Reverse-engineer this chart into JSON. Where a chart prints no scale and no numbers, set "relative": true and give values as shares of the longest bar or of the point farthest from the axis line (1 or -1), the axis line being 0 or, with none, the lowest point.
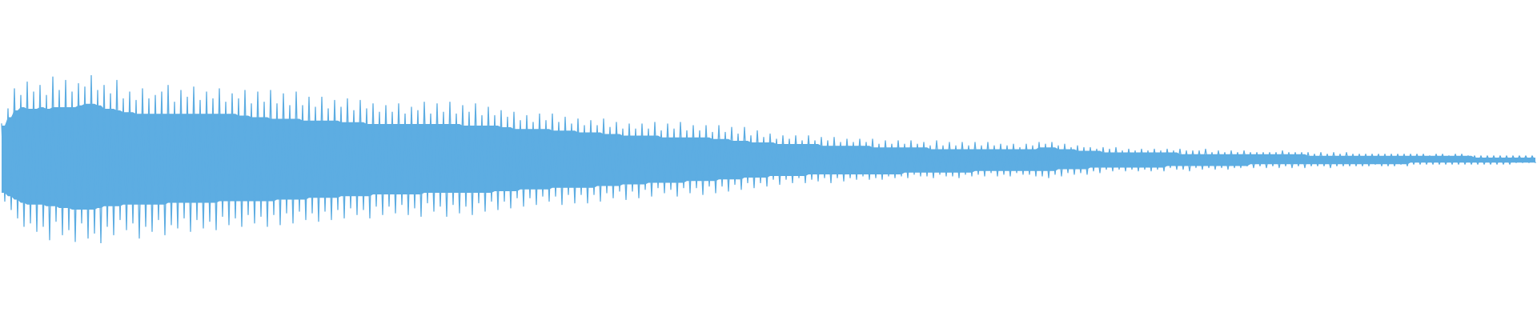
{
  "chart_data": {
    "type": "line",
    "relative": true,
    "categories": [
      null,
      null,
      null,
      null,
      null,
      null,
      null,
      null,
      null,
      null,
      null,
      null,
      null,
      null,
      null,
      null,
      null,
      null,
      null,
      null,
      null,
      null,
      null,
      null,
      null,
      null,
      null,
      null,
      null,
      null,
      null,
      null,
      null,
      null,
      null,
      null,
      null,
      null,
      null,
      null,
      null,
      null,
      null,
      null,
      null,
      null,
      null,
      null,
      null,
      null,
      null,
      null,
      null,
      null,
      null,
      null,
      null,
      null,
      null,
      null,
      null,
      null,
      null,
      null,
      null,
      null,
      null,
      null,
      null,
      null,
      null,
      null,
      null,
      null,
      null,
      null,
      null,
      null,
      null,
      null,
      null,
      null,
      null,
      null,
      null,
      null,
      null,
      null,
      null,
      null,
      null,
      null,
      null,
      null,
      null,
      null,
      null,
      null,
      null,
      null,
      null,
      null,
      null,
      null,
      null,
      null,
      null,
      null,
      null,
      null,
      null,
      null,
      null,
      null,
      null,
      null,
      null,
      null,
      null,
      null,
      null,
      null,
      null,
      null,
      null,
      null,
      null,
      null,
      null,
      null,
      null,
      null,
      null,
      null,
      null,
      null,
      null,
      null,
      null,
      null,
      null,
      null,
      null,
      null,
      null,
      null,
      null,
      null,
      null,
      null,
      null,
      null,
      null,
      null,
      null,
      null,
      null,
      null,
      null,
      null,
      null,
      null,
      null,
      null,
      null,
      null,
      null,
      null,
      null,
      null,
      null,
      null,
      null,
      null,
      null,
      null,
      null,
      null,
      null,
      null,
      null,
      null,
      null,
      null,
      null,
      null,
      null,
      null,
      null,
      null,
      null,
      null,
      null,
      null,
      null,
      null,
      null,
      null,
      null,
      null,
      null,
      null,
      null,
      null,
      null,
      null,
      null,
      null,
      null,
      null,
      null,
      null,
      null,
      null,
      null,
      null,
      null,
      null,
      null,
      null,
      null,
      null,
      null,
      null,
      null,
      null,
      null,
      null,
      null,
      null,
      null,
      null,
      null,
      null,
      null,
      null,
      null,
      null,
      null,
      null,
      null,
      null,
      null,
      null,
      null,
      null,
      null,
      null,
      null,
      null,
      null,
      null,
      null,
      null,
      null,
      null,
      null,
      null,
      null,
      null,
      null,
      null,
      null,
      null,
      null,
      null,
      null,
      null,
      null,
      null,
      null,
      null,
      null,
      null,
      null,
      null,
      null,
      null,
      null,
      null,
      null,
      null,
      null,
      null,
      null,
      null,
      null,
      null,
      null,
      null,
      null,
      null,
      null,
      null,
      null,
      null,
      null,
      null,
      null,
      null,
      null,
      null,
      null,
      null,
      null,
      null,
      null,
      null,
      null,
      null,
      null,
      null,
      null,
      null,
      null,
      null,
      null,
      null,
      null,
      null,
      null,
      null,
      null,
      null,
      null,
      null,
      null,
      null,
      null,
      null,
      null,
      null,
      null,
      null,
      null,
      null,
      null,
      null,
      null,
      null,
      null,
      null,
      null,
      null,
      null,
      null,
      null,
      null,
      null,
      null,
      null,
      null,
      null,
      null,
      null,
      null,
      null,
      null,
      null,
      null,
      null,
      null,
      null,
      null,
      null,
      null,
      null,
      null,
      null,
      null,
      null,
      null,
      null,
      null,
      null,
      null,
      null,
      null,
      null,
      null,
      null,
      null,
      null,
      null,
      null,
      null,
      null,
      null,
      null,
      null,
      null,
      null,
      null,
      null,
      null,
      null,
      null,
      null,
      null,
      null,
      null,
      null,
      null,
      null,
      null,
      null,
      null,
      null,
      null,
      null,
      null,
      null,
      null,
      null,
      null,
      null,
      null,
      null,
      null,
      null,
      null,
      null,
      null,
      null,
      null,
      null,
      null,
      null,
      null,
      null,
      null,
      null,
      null,
      null,
      null,
      null,
      null,
      null,
      null,
      null,
      null,
      null,
      null,
      null,
      null,
      null,
      null,
      null,
      null,
      null,
      null,
      null,
      null,
      null,
      null,
      null,
      null,
      null,
      null,
      null,
      null,
      null,
      null,
      null,
      null,
      null,
      null,
      null,
      null,
      null,
      null,
      null,
      null,
      null,
      null,
      null,
      null,
      null,
      null,
      null
    ],
    "series": [
      {
        "color": "#5dade2",
        "values": [
          0.71,
          0.25,
          0.8,
          0.2,
          0.92,
          0.15,
          0.88,
          0.1,
          0.96,
          0.12,
          0.9,
          0.07,
          0.94,
          0.1,
          0.88,
          0.02,
          0.99,
          0.13,
          0.91,
          0.05,
          0.97,
          0.08,
          0.9,
          0.01,
          0.95,
          0.12,
          0.93,
          0.03,
          1.0,
          0.06,
          0.91,
          0.0,
          0.94,
          0.1,
          0.89,
          0.05,
          0.97,
          0.14,
          0.86,
          0.08,
          0.9,
          0.12,
          0.85,
          0.03,
          0.92,
          0.1,
          0.86,
          0.07,
          0.88,
          0.14,
          0.9,
          0.05,
          0.94,
          0.11,
          0.84,
          0.09,
          0.91,
          0.15,
          0.87,
          0.07,
          0.93,
          0.14,
          0.85,
          0.09,
          0.9,
          0.13,
          0.86,
          0.08,
          0.92,
          0.16,
          0.84,
          0.11,
          0.89,
          0.15,
          0.86,
          0.1,
          0.91,
          0.17,
          0.83,
          0.12,
          0.9,
          0.16,
          0.84,
          0.1,
          0.91,
          0.17,
          0.83,
          0.11,
          0.89,
          0.18,
          0.82,
          0.12,
          0.9,
          0.19,
          0.82,
          0.14,
          0.87,
          0.18,
          0.81,
          0.13,
          0.87,
          0.19,
          0.8,
          0.14,
          0.85,
          0.2,
          0.81,
          0.15,
          0.86,
          0.21,
          0.79,
          0.17,
          0.85,
          0.2,
          0.8,
          0.15,
          0.83,
          0.22,
          0.78,
          0.17,
          0.82,
          0.22,
          0.78,
          0.18,
          0.83,
          0.23,
          0.77,
          0.17,
          0.81,
          0.21,
          0.79,
          0.16,
          0.84,
          0.24,
          0.77,
          0.19,
          0.83,
          0.22,
          0.78,
          0.16,
          0.84,
          0.23,
          0.77,
          0.18,
          0.82,
          0.22,
          0.78,
          0.17,
          0.83,
          0.24,
          0.76,
          0.19,
          0.81,
          0.25,
          0.76,
          0.2,
          0.79,
          0.25,
          0.75,
          0.21,
          0.78,
          0.27,
          0.73,
          0.22,
          0.76,
          0.27,
          0.72,
          0.23,
          0.77,
          0.28,
          0.73,
          0.25,
          0.77,
          0.28,
          0.72,
          0.23,
          0.75,
          0.29,
          0.71,
          0.24,
          0.74,
          0.29,
          0.7,
          0.24,
          0.73,
          0.29,
          0.7,
          0.25,
          0.74,
          0.3,
          0.69,
          0.27,
          0.72,
          0.31,
          0.68,
          0.26,
          0.71,
          0.31,
          0.68,
          0.27,
          0.71,
          0.32,
          0.68,
          0.28,
          0.72,
          0.33,
          0.67,
          0.3,
          0.71,
          0.32,
          0.68,
          0.28,
          0.72,
          0.33,
          0.67,
          0.3,
          0.7,
          0.33,
          0.67,
          0.29,
          0.7,
          0.34,
          0.66,
          0.3,
          0.7,
          0.34,
          0.66,
          0.31,
          0.69,
          0.35,
          0.65,
          0.32,
          0.69,
          0.36,
          0.64,
          0.33,
          0.67,
          0.36,
          0.63,
          0.34,
          0.65,
          0.38,
          0.62,
          0.35,
          0.64,
          0.38,
          0.62,
          0.36,
          0.64,
          0.39,
          0.61,
          0.36,
          0.64,
          0.38,
          0.61,
          0.37,
          0.63,
          0.39,
          0.61,
          0.36,
          0.63,
          0.39,
          0.6,
          0.37,
          0.62,
          0.39,
          0.6,
          0.38,
          0.62,
          0.4,
          0.6,
          0.38,
          0.62,
          0.39,
          0.59,
          0.38,
          0.61,
          0.4,
          0.59,
          0.39,
          0.61,
          0.4,
          0.59,
          0.39,
          0.61,
          0.41,
          0.59,
          0.4,
          0.6,
          0.4,
          0.58,
          0.39,
          0.61,
          0.41,
          0.58,
          0.4,
          0.6,
          0.4,
          0.58,
          0.39,
          0.6,
          0.41,
          0.58,
          0.4,
          0.6,
          0.41,
          0.58,
          0.4,
          0.6,
          0.42,
          0.58,
          0.4,
          0.59,
          0.41,
          0.58,
          0.4,
          0.59,
          0.42,
          0.57,
          0.41,
          0.59,
          0.41,
          0.58,
          0.4,
          0.6,
          0.4,
          0.59,
          0.39,
          0.6,
          0.41,
          0.58,
          0.4,
          0.59,
          0.42,
          0.57,
          0.41,
          0.58,
          0.42,
          0.57,
          0.41,
          0.57,
          0.43,
          0.56,
          0.42,
          0.57,
          0.44,
          0.56,
          0.43,
          0.57,
          0.44,
          0.55,
          0.43,
          0.56,
          0.44,
          0.55,
          0.43,
          0.56,
          0.44,
          0.55,
          0.43,
          0.56,
          0.44,
          0.55,
          0.43,
          0.56,
          0.45,
          0.55,
          0.44,
          0.56,
          0.44,
          0.55,
          0.43,
          0.55,
          0.45,
          0.55,
          0.44,
          0.56,
          0.45,
          0.54,
          0.44,
          0.55,
          0.45,
          0.54,
          0.44,
          0.55,
          0.45,
          0.54,
          0.45,
          0.55,
          0.46,
          0.54,
          0.45,
          0.54,
          0.46,
          0.54,
          0.45,
          0.54,
          0.46,
          0.54,
          0.45,
          0.55,
          0.46,
          0.54,
          0.45,
          0.54,
          0.46,
          0.54,
          0.45,
          0.54,
          0.46,
          0.53,
          0.46,
          0.54,
          0.46,
          0.53,
          0.45,
          0.54,
          0.46,
          0.53,
          0.46,
          0.54,
          0.46,
          0.53,
          0.46,
          0.53,
          0.46,
          0.53,
          0.46,
          0.53,
          0.47,
          0.53,
          0.46,
          0.53,
          0.46,
          0.53,
          0.46,
          0.53,
          0.47,
          0.53,
          0.46,
          0.53,
          0.47,
          0.53,
          0.47,
          0.53,
          0.47,
          0.52,
          0.47,
          0.53,
          0.47,
          0.53,
          0.47,
          0.52,
          0.47,
          0.53,
          0.47,
          0.53,
          0.47,
          0.52,
          0.47,
          0.52,
          0.47,
          0.52,
          0.47,
          0.52,
          0.47,
          0.52,
          0.47,
          0.52,
          0.47,
          0.52,
          0.47,
          0.52,
          0.48,
          0.52,
          0.48,
          0.52,
          0.48,
          0.52,
          0.48
        ],
        "lower": [
          0.3,
          0.3,
          0.28,
          0.28,
          0.26,
          0.26,
          0.24,
          0.24,
          0.23,
          0.23,
          0.23,
          0.23,
          0.23,
          0.23,
          0.22,
          0.22,
          0.22,
          0.22,
          0.21,
          0.21,
          0.21,
          0.21,
          0.2,
          0.2,
          0.2,
          0.2,
          0.2,
          0.2,
          0.2,
          0.2,
          0.21,
          0.21,
          0.22,
          0.22,
          0.22,
          0.22,
          0.22,
          0.22,
          0.23,
          0.23,
          0.23,
          0.23,
          0.23,
          0.23,
          0.23,
          0.23,
          0.23,
          0.23,
          0.23,
          0.23,
          0.23,
          0.23,
          0.24,
          0.24,
          0.24,
          0.24,
          0.24,
          0.24,
          0.24,
          0.24,
          0.24,
          0.24,
          0.24,
          0.24,
          0.24,
          0.24,
          0.24,
          0.24,
          0.25,
          0.25,
          0.25,
          0.25,
          0.25,
          0.25,
          0.25,
          0.25,
          0.25,
          0.25,
          0.25,
          0.25,
          0.25,
          0.25,
          0.25,
          0.25,
          0.25,
          0.25,
          0.26,
          0.26,
          0.26,
          0.26,
          0.26,
          0.26,
          0.26,
          0.26,
          0.26,
          0.26,
          0.27,
          0.27,
          0.27,
          0.27,
          0.27,
          0.27,
          0.27,
          0.27,
          0.27,
          0.27,
          0.28,
          0.28,
          0.28,
          0.28,
          0.28,
          0.28,
          0.28,
          0.28,
          0.28,
          0.28,
          0.29,
          0.29,
          0.29,
          0.29,
          0.29,
          0.29,
          0.29,
          0.29,
          0.29,
          0.29,
          0.29,
          0.29,
          0.29,
          0.29,
          0.29,
          0.29,
          0.3,
          0.3,
          0.3,
          0.3,
          0.3,
          0.3,
          0.3,
          0.3,
          0.3,
          0.3,
          0.3,
          0.3,
          0.3,
          0.3,
          0.3,
          0.3,
          0.3,
          0.3,
          0.3,
          0.3,
          0.3,
          0.3,
          0.31,
          0.31,
          0.31,
          0.31,
          0.31,
          0.31,
          0.31,
          0.31,
          0.32,
          0.32,
          0.32,
          0.32,
          0.32,
          0.32,
          0.32,
          0.32,
          0.32,
          0.32,
          0.33,
          0.33,
          0.33,
          0.33,
          0.33,
          0.33,
          0.33,
          0.33,
          0.33,
          0.33,
          0.33,
          0.33,
          0.33,
          0.33,
          0.34,
          0.34,
          0.34,
          0.34,
          0.34,
          0.34,
          0.34,
          0.34,
          0.35,
          0.35,
          0.35,
          0.35,
          0.35,
          0.35,
          0.35,
          0.35,
          0.36,
          0.36,
          0.36,
          0.36,
          0.36,
          0.36,
          0.36,
          0.36,
          0.36,
          0.36,
          0.36,
          0.36,
          0.37,
          0.37,
          0.37,
          0.37,
          0.37,
          0.37,
          0.37,
          0.37,
          0.37,
          0.37,
          0.38,
          0.38,
          0.38,
          0.38,
          0.38,
          0.38,
          0.38,
          0.38,
          0.39,
          0.39,
          0.39,
          0.39,
          0.39,
          0.39,
          0.39,
          0.39,
          0.4,
          0.4,
          0.4,
          0.4,
          0.4,
          0.4,
          0.4,
          0.4,
          0.4,
          0.4,
          0.4,
          0.4,
          0.41,
          0.41,
          0.41,
          0.41,
          0.41,
          0.41,
          0.41,
          0.41,
          0.41,
          0.41,
          0.41,
          0.41,
          0.41,
          0.41,
          0.41,
          0.41,
          0.41,
          0.41,
          0.41,
          0.41,
          0.41,
          0.41,
          0.41,
          0.41,
          0.41,
          0.41,
          0.41,
          0.41,
          0.41,
          0.41,
          0.42,
          0.42,
          0.42,
          0.42,
          0.42,
          0.42,
          0.42,
          0.42,
          0.42,
          0.42,
          0.42,
          0.42,
          0.42,
          0.42,
          0.42,
          0.42,
          0.42,
          0.42,
          0.42,
          0.42,
          0.42,
          0.42,
          0.43,
          0.43,
          0.43,
          0.43,
          0.43,
          0.43,
          0.43,
          0.43,
          0.43,
          0.43,
          0.43,
          0.43,
          0.43,
          0.43,
          0.43,
          0.43,
          0.43,
          0.43,
          0.43,
          0.43,
          0.43,
          0.43,
          0.43,
          0.43,
          0.43,
          0.43,
          0.44,
          0.44,
          0.44,
          0.44,
          0.44,
          0.44,
          0.44,
          0.44,
          0.44,
          0.44,
          0.45,
          0.45,
          0.45,
          0.45,
          0.45,
          0.45,
          0.45,
          0.45,
          0.45,
          0.45,
          0.45,
          0.45,
          0.45,
          0.45,
          0.45,
          0.45,
          0.45,
          0.45,
          0.45,
          0.45,
          0.45,
          0.45,
          0.45,
          0.45,
          0.46,
          0.46,
          0.46,
          0.46,
          0.46,
          0.46,
          0.46,
          0.46,
          0.46,
          0.46,
          0.46,
          0.46,
          0.46,
          0.46,
          0.46,
          0.46,
          0.46,
          0.46,
          0.46,
          0.46,
          0.46,
          0.46,
          0.46,
          0.46,
          0.46,
          0.46,
          0.47,
          0.47,
          0.47,
          0.47,
          0.47,
          0.47,
          0.47,
          0.47,
          0.47,
          0.47,
          0.47,
          0.47,
          0.47,
          0.47,
          0.47,
          0.47,
          0.47,
          0.47,
          0.47,
          0.47,
          0.47,
          0.47,
          0.47,
          0.47,
          0.47,
          0.47,
          0.47,
          0.47,
          0.47,
          0.47,
          0.47,
          0.47,
          0.47,
          0.47,
          0.47,
          0.47,
          0.47,
          0.47,
          0.47,
          0.47,
          0.47,
          0.47,
          0.47,
          0.47,
          0.47,
          0.47,
          0.47,
          0.47,
          0.47,
          0.47,
          0.48,
          0.48,
          0.48,
          0.48,
          0.48,
          0.48,
          0.48,
          0.48,
          0.48,
          0.48,
          0.48,
          0.48,
          0.48,
          0.48,
          0.48,
          0.48,
          0.48,
          0.48,
          0.48,
          0.48,
          0.48,
          0.48,
          0.48,
          0.48,
          0.48,
          0.48,
          0.48,
          0.48,
          0.48,
          0.48,
          0.48,
          0.48,
          0.48,
          0.48,
          0.48,
          0.48,
          0.48,
          0.48,
          0.48,
          0.48
        ],
        "upper": [
          0.7,
          0.7,
          0.75,
          0.75,
          0.79,
          0.79,
          0.81,
          0.81,
          0.8,
          0.8,
          0.8,
          0.8,
          0.81,
          0.81,
          0.8,
          0.8,
          0.81,
          0.81,
          0.81,
          0.81,
          0.81,
          0.81,
          0.81,
          0.81,
          0.82,
          0.82,
          0.83,
          0.83,
          0.83,
          0.83,
          0.82,
          0.82,
          0.8,
          0.8,
          0.8,
          0.8,
          0.79,
          0.79,
          0.78,
          0.78,
          0.78,
          0.78,
          0.77,
          0.77,
          0.77,
          0.77,
          0.77,
          0.77,
          0.77,
          0.77,
          0.77,
          0.77,
          0.77,
          0.77,
          0.77,
          0.77,
          0.77,
          0.77,
          0.77,
          0.77,
          0.77,
          0.77,
          0.77,
          0.77,
          0.77,
          0.77,
          0.77,
          0.77,
          0.77,
          0.77,
          0.77,
          0.77,
          0.77,
          0.77,
          0.76,
          0.76,
          0.76,
          0.76,
          0.75,
          0.75,
          0.75,
          0.75,
          0.75,
          0.75,
          0.74,
          0.74,
          0.74,
          0.74,
          0.74,
          0.74,
          0.74,
          0.74,
          0.74,
          0.74,
          0.73,
          0.73,
          0.73,
          0.73,
          0.73,
          0.73,
          0.73,
          0.73,
          0.73,
          0.73,
          0.73,
          0.73,
          0.72,
          0.72,
          0.72,
          0.72,
          0.72,
          0.72,
          0.72,
          0.72,
          0.71,
          0.71,
          0.71,
          0.71,
          0.71,
          0.71,
          0.71,
          0.71,
          0.71,
          0.71,
          0.71,
          0.71,
          0.71,
          0.71,
          0.71,
          0.71,
          0.71,
          0.71,
          0.71,
          0.71,
          0.71,
          0.71,
          0.71,
          0.71,
          0.71,
          0.71,
          0.71,
          0.71,
          0.71,
          0.71,
          0.7,
          0.7,
          0.7,
          0.7,
          0.7,
          0.7,
          0.7,
          0.7,
          0.7,
          0.7,
          0.7,
          0.7,
          0.69,
          0.69,
          0.69,
          0.69,
          0.68,
          0.68,
          0.68,
          0.68,
          0.68,
          0.68,
          0.68,
          0.68,
          0.68,
          0.68,
          0.68,
          0.68,
          0.67,
          0.67,
          0.67,
          0.67,
          0.67,
          0.67,
          0.67,
          0.67,
          0.66,
          0.66,
          0.66,
          0.66,
          0.66,
          0.66,
          0.66,
          0.66,
          0.65,
          0.65,
          0.65,
          0.65,
          0.65,
          0.65,
          0.64,
          0.64,
          0.64,
          0.64,
          0.64,
          0.64,
          0.64,
          0.64,
          0.64,
          0.64,
          0.64,
          0.64,
          0.63,
          0.63,
          0.63,
          0.63,
          0.63,
          0.63,
          0.63,
          0.63,
          0.63,
          0.63,
          0.63,
          0.63,
          0.63,
          0.63,
          0.63,
          0.63,
          0.62,
          0.62,
          0.62,
          0.62,
          0.62,
          0.62,
          0.61,
          0.61,
          0.61,
          0.61,
          0.61,
          0.61,
          0.6,
          0.6,
          0.6,
          0.6,
          0.6,
          0.6,
          0.6,
          0.6,
          0.59,
          0.59,
          0.59,
          0.59,
          0.59,
          0.59,
          0.59,
          0.59,
          0.59,
          0.59,
          0.59,
          0.59,
          0.59,
          0.59,
          0.58,
          0.58,
          0.58,
          0.58,
          0.58,
          0.58,
          0.58,
          0.58,
          0.58,
          0.58,
          0.58,
          0.58,
          0.58,
          0.58,
          0.58,
          0.58,
          0.57,
          0.57,
          0.57,
          0.57,
          0.57,
          0.57,
          0.57,
          0.57,
          0.57,
          0.57,
          0.57,
          0.57,
          0.57,
          0.57,
          0.57,
          0.57,
          0.57,
          0.57,
          0.56,
          0.56,
          0.56,
          0.56,
          0.56,
          0.56,
          0.56,
          0.56,
          0.56,
          0.56,
          0.56,
          0.56,
          0.56,
          0.56,
          0.56,
          0.56,
          0.56,
          0.56,
          0.56,
          0.56,
          0.56,
          0.56,
          0.56,
          0.56,
          0.56,
          0.56,
          0.56,
          0.56,
          0.56,
          0.56,
          0.56,
          0.56,
          0.56,
          0.56,
          0.57,
          0.57,
          0.57,
          0.57,
          0.57,
          0.57,
          0.56,
          0.56,
          0.56,
          0.56,
          0.56,
          0.56,
          0.55,
          0.55,
          0.55,
          0.55,
          0.55,
          0.55,
          0.55,
          0.55,
          0.54,
          0.54,
          0.54,
          0.54,
          0.54,
          0.54,
          0.54,
          0.54,
          0.54,
          0.54,
          0.54,
          0.54,
          0.54,
          0.54,
          0.54,
          0.54,
          0.54,
          0.54,
          0.54,
          0.54,
          0.54,
          0.54,
          0.54,
          0.54,
          0.53,
          0.53,
          0.53,
          0.53,
          0.53,
          0.53,
          0.53,
          0.53,
          0.53,
          0.53,
          0.53,
          0.53,
          0.53,
          0.53,
          0.53,
          0.53,
          0.53,
          0.53,
          0.53,
          0.53,
          0.53,
          0.53,
          0.53,
          0.53,
          0.53,
          0.53,
          0.53,
          0.53,
          0.53,
          0.53,
          0.53,
          0.53,
          0.53,
          0.53,
          0.53,
          0.53,
          0.53,
          0.53,
          0.53,
          0.53,
          0.52,
          0.52,
          0.52,
          0.52,
          0.52,
          0.52,
          0.52,
          0.52,
          0.52,
          0.52,
          0.52,
          0.52,
          0.52,
          0.52,
          0.52,
          0.52,
          0.52,
          0.52,
          0.52,
          0.52,
          0.52,
          0.52,
          0.52,
          0.52,
          0.52,
          0.52,
          0.52,
          0.52,
          0.52,
          0.52,
          0.52,
          0.52,
          0.52,
          0.52,
          0.52,
          0.52,
          0.52,
          0.52,
          0.52,
          0.52,
          0.52,
          0.52,
          0.52,
          0.52,
          0.52,
          0.52,
          0.52,
          0.52,
          0.52,
          0.52,
          0.52,
          0.52,
          0.51,
          0.51,
          0.51,
          0.51,
          0.51,
          0.51,
          0.51,
          0.51,
          0.51,
          0.51,
          0.51,
          0.51,
          0.51,
          0.51,
          0.51,
          0.51,
          0.51,
          0.51,
          0.51,
          0.51
        ]
      }
    ]
  }
}
